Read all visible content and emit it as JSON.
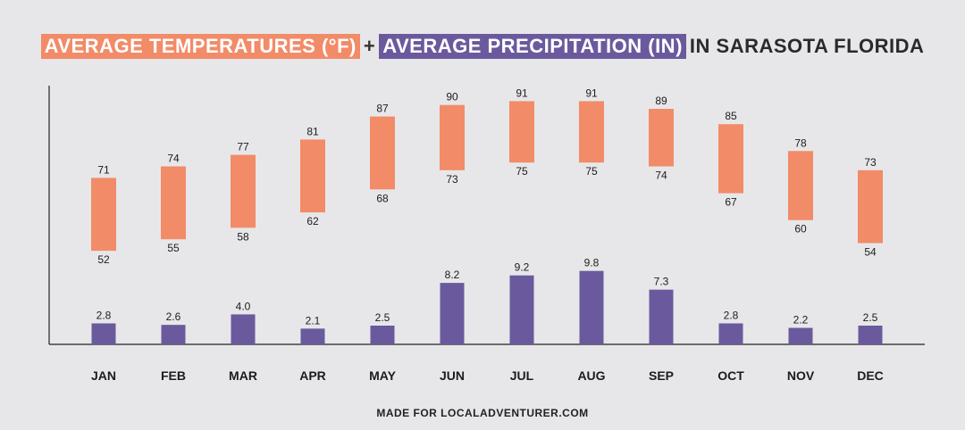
{
  "title": {
    "temp_part": "AVERAGE TEMPERATURES (°F)",
    "plus": "+",
    "precip_part": "AVERAGE PRECIPITATION (IN)",
    "location_part": "IN SARASOTA FLORIDA"
  },
  "footer": "MADE FOR LOCALADVENTURER.COM",
  "colors": {
    "temperature": "#f28b68",
    "precipitation": "#6a5a9d",
    "background": "#e7e7e9",
    "axis": "#222222"
  },
  "chart_data": {
    "type": "bar",
    "categories": [
      "JAN",
      "FEB",
      "MAR",
      "APR",
      "MAY",
      "JUN",
      "JUL",
      "AUG",
      "SEP",
      "OCT",
      "NOV",
      "DEC"
    ],
    "series": [
      {
        "name": "AVERAGE TEMPERATURES (°F)",
        "kind": "range",
        "high": [
          71,
          74,
          77,
          81,
          87,
          90,
          91,
          91,
          89,
          85,
          78,
          73
        ],
        "low": [
          52,
          55,
          58,
          62,
          68,
          73,
          75,
          75,
          74,
          67,
          60,
          54
        ]
      },
      {
        "name": "AVERAGE PRECIPITATION (IN)",
        "kind": "bar",
        "values": [
          2.8,
          2.6,
          4.0,
          2.1,
          2.5,
          8.2,
          9.2,
          9.8,
          7.3,
          2.8,
          2.2,
          2.5
        ]
      }
    ],
    "grid": false,
    "legend": "none"
  }
}
